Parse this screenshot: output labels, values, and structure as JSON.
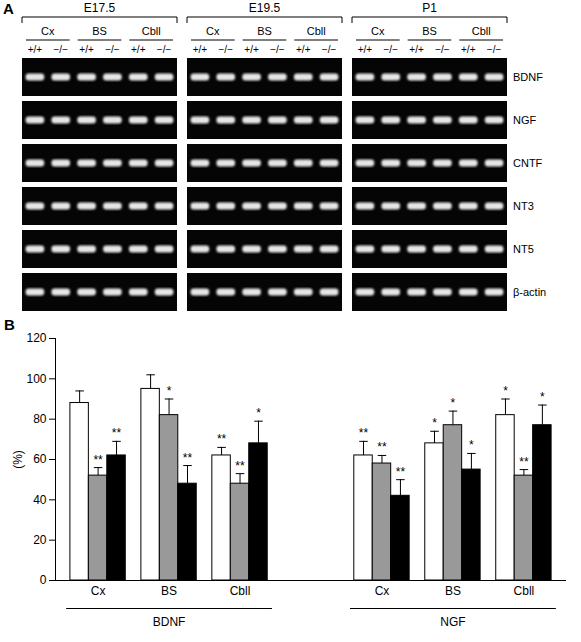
{
  "panel_labels": [
    "A",
    "B"
  ],
  "gel": {
    "stages": [
      "E17.5",
      "E19.5",
      "P1"
    ],
    "regions": [
      "Cx",
      "BS",
      "Cbll"
    ],
    "genotypes": [
      "+/+",
      "−/−"
    ],
    "genes": [
      "BDNF",
      "NGF",
      "CNTF",
      "NT3",
      "NT5",
      "β-actin"
    ]
  },
  "chart_data": {
    "type": "bar",
    "categories": [
      "Cx",
      "BS",
      "Cbll",
      "Cx",
      "BS",
      "Cbll"
    ],
    "groups": [
      "BDNF",
      "BDNF",
      "BDNF",
      "NGF",
      "NGF",
      "NGF"
    ],
    "series": [
      {
        "color": "#ffffff",
        "values": [
          88,
          95,
          62,
          62,
          68,
          82
        ],
        "errors": [
          6,
          7,
          4,
          7,
          6,
          8
        ],
        "annotations": [
          null,
          null,
          "**",
          "**",
          "*",
          "*"
        ]
      },
      {
        "color": "#999999",
        "values": [
          52,
          82,
          48,
          58,
          77,
          52
        ],
        "errors": [
          4,
          8,
          5,
          4,
          7,
          3
        ],
        "annotations": [
          "**",
          "*",
          "**",
          "**",
          "*",
          "**"
        ]
      },
      {
        "color": "#000000",
        "values": [
          62,
          48,
          68,
          42,
          55,
          77
        ],
        "errors": [
          7,
          9,
          11,
          8,
          8,
          10
        ],
        "annotations": [
          "**",
          "**",
          "*",
          "**",
          "*",
          "*"
        ]
      }
    ],
    "y_label": "(%)",
    "ylim": [
      0,
      120
    ],
    "yticks": [
      0,
      20,
      40,
      60,
      80,
      100,
      120
    ]
  }
}
